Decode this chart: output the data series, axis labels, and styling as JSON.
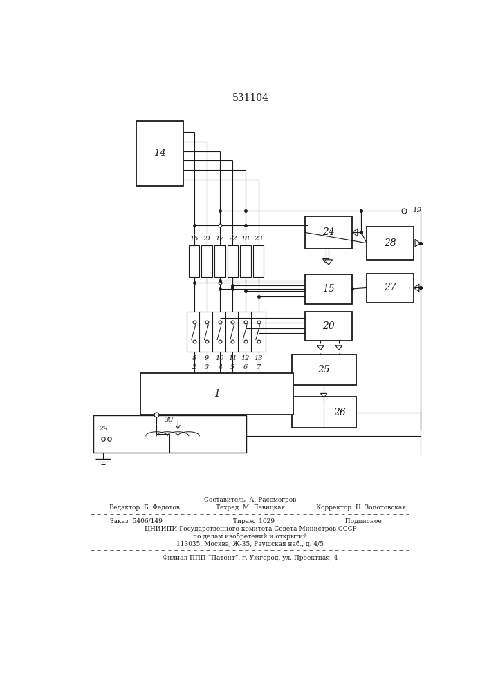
{
  "title": "531104",
  "bg_color": "#ffffff",
  "line_color": "#1a1a1a",
  "footer": {
    "line1_center": "Составитель  А. Рассмогров",
    "line2_left": "Редактор  Б. Федотов",
    "line2_center": "Техред  М. Левицкая",
    "line2_right": "Корректор  Н. Золотовская",
    "line3_left": "Заказ  5406/149",
    "line3_center": "Тираж  1029",
    "line3_right": "· Подписное",
    "line4": "ЦНИИПИ Государственного комитета Совета Министров СССР",
    "line5": "по делам изобретений и открытий",
    "line6": "113035, Москва, Ж-35, Раушская наб., д. 4/5",
    "line7": "Филиал ППП “Патент”, г. Ужгород, ул. Проектная, 4"
  },
  "resistor_labels": [
    "16",
    "21",
    "17",
    "22",
    "18",
    "23"
  ],
  "switch_labels": [
    "8",
    "9",
    "10",
    "11",
    "12",
    "13"
  ],
  "pin_labels": [
    "2",
    "3",
    "4",
    "5",
    "6",
    "7"
  ]
}
